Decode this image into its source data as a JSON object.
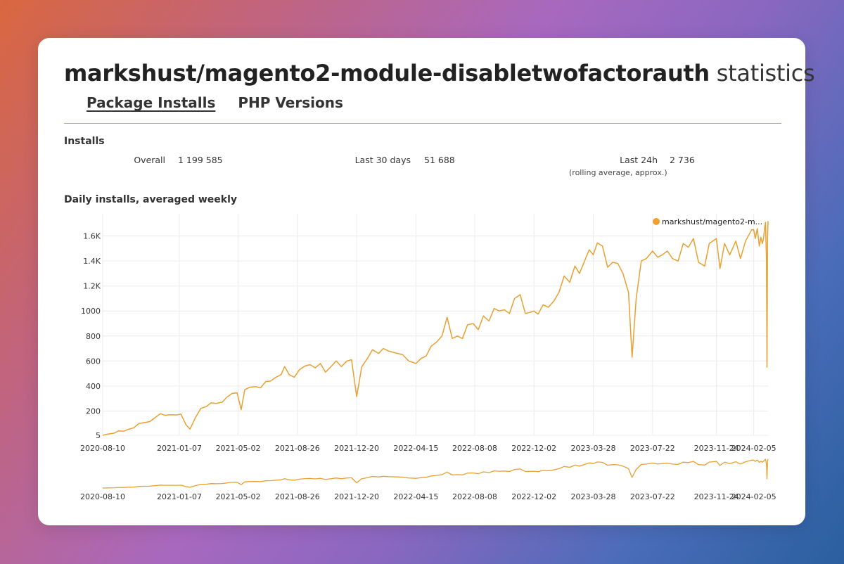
{
  "header": {
    "package_name": "markshust/magento2-module-disabletwofactorauth",
    "title_suffix": "statistics"
  },
  "tabs": [
    {
      "label": "Package Installs",
      "active": true
    },
    {
      "label": "PHP Versions",
      "active": false
    }
  ],
  "installs": {
    "section_label": "Installs",
    "overall_label": "Overall",
    "overall_value": "1 199 585",
    "last30_label": "Last 30 days",
    "last30_value": "51 688",
    "last24_label": "Last 24h",
    "last24_value": "2 736",
    "last24_note": "(rolling average, approx.)"
  },
  "chart_section_label": "Daily installs, averaged weekly",
  "colors": {
    "series": "#f0a030",
    "line": "#e8a030",
    "grid": "#ececec",
    "divider": "#e0a84a"
  },
  "chart_data": {
    "type": "line",
    "title": "",
    "xlabel": "",
    "ylabel": "",
    "legend": {
      "position": "top-right",
      "label": "markshust/magento2-m..."
    },
    "grid": true,
    "ylim": [
      5,
      1750
    ],
    "y_ticks": [
      5,
      200,
      400,
      600,
      800,
      1000,
      1200,
      1400,
      1600
    ],
    "y_tick_labels": [
      "5",
      "200",
      "400",
      "600",
      "800",
      "1000",
      "1.2K",
      "1.4K",
      "1.6K"
    ],
    "x_start": "2020-08-10",
    "x_end": "2024-03-04",
    "x_ticks": [
      "2020-08-10",
      "2021-01-07",
      "2021-05-02",
      "2021-08-26",
      "2021-12-20",
      "2022-04-15",
      "2022-08-08",
      "2022-12-02",
      "2023-03-28",
      "2023-07-22",
      "2023-11-24",
      "2024-02-05"
    ],
    "series": [
      {
        "name": "markshust/magento2-m...",
        "points": [
          [
            "2020-08-10",
            5
          ],
          [
            "2020-08-20",
            15
          ],
          [
            "2020-09-01",
            22
          ],
          [
            "2020-09-10",
            40
          ],
          [
            "2020-09-20",
            38
          ],
          [
            "2020-10-01",
            55
          ],
          [
            "2020-10-10",
            65
          ],
          [
            "2020-10-20",
            100
          ],
          [
            "2020-11-01",
            108
          ],
          [
            "2020-11-10",
            115
          ],
          [
            "2020-11-20",
            145
          ],
          [
            "2020-12-01",
            178
          ],
          [
            "2020-12-10",
            165
          ],
          [
            "2020-12-20",
            170
          ],
          [
            "2021-01-01",
            168
          ],
          [
            "2021-01-10",
            175
          ],
          [
            "2021-01-20",
            90
          ],
          [
            "2021-01-28",
            55
          ],
          [
            "2021-02-08",
            150
          ],
          [
            "2021-02-18",
            220
          ],
          [
            "2021-03-01",
            235
          ],
          [
            "2021-03-10",
            265
          ],
          [
            "2021-03-20",
            260
          ],
          [
            "2021-04-01",
            270
          ],
          [
            "2021-04-10",
            310
          ],
          [
            "2021-04-20",
            340
          ],
          [
            "2021-04-30",
            345
          ],
          [
            "2021-05-08",
            210
          ],
          [
            "2021-05-15",
            370
          ],
          [
            "2021-05-25",
            390
          ],
          [
            "2021-06-05",
            395
          ],
          [
            "2021-06-15",
            385
          ],
          [
            "2021-06-25",
            435
          ],
          [
            "2021-07-05",
            440
          ],
          [
            "2021-07-15",
            470
          ],
          [
            "2021-07-25",
            490
          ],
          [
            "2021-08-01",
            555
          ],
          [
            "2021-08-10",
            490
          ],
          [
            "2021-08-20",
            470
          ],
          [
            "2021-08-30",
            530
          ],
          [
            "2021-09-10",
            560
          ],
          [
            "2021-09-20",
            570
          ],
          [
            "2021-09-30",
            545
          ],
          [
            "2021-10-10",
            580
          ],
          [
            "2021-10-20",
            510
          ],
          [
            "2021-11-01",
            560
          ],
          [
            "2021-11-10",
            600
          ],
          [
            "2021-11-20",
            555
          ],
          [
            "2021-12-01",
            600
          ],
          [
            "2021-12-10",
            610
          ],
          [
            "2021-12-20",
            315
          ],
          [
            "2021-12-30",
            555
          ],
          [
            "2022-01-10",
            620
          ],
          [
            "2022-01-20",
            690
          ],
          [
            "2022-02-01",
            660
          ],
          [
            "2022-02-10",
            700
          ],
          [
            "2022-02-20",
            680
          ],
          [
            "2022-03-01",
            670
          ],
          [
            "2022-03-10",
            660
          ],
          [
            "2022-03-20",
            650
          ],
          [
            "2022-04-01",
            600
          ],
          [
            "2022-04-15",
            580
          ],
          [
            "2022-04-25",
            620
          ],
          [
            "2022-05-05",
            640
          ],
          [
            "2022-05-15",
            720
          ],
          [
            "2022-05-25",
            750
          ],
          [
            "2022-06-05",
            800
          ],
          [
            "2022-06-15",
            950
          ],
          [
            "2022-06-25",
            780
          ],
          [
            "2022-07-05",
            800
          ],
          [
            "2022-07-15",
            780
          ],
          [
            "2022-07-25",
            890
          ],
          [
            "2022-08-05",
            900
          ],
          [
            "2022-08-15",
            850
          ],
          [
            "2022-08-25",
            960
          ],
          [
            "2022-09-05",
            920
          ],
          [
            "2022-09-15",
            1020
          ],
          [
            "2022-09-25",
            1000
          ],
          [
            "2022-10-05",
            1010
          ],
          [
            "2022-10-15",
            980
          ],
          [
            "2022-10-25",
            1100
          ],
          [
            "2022-11-05",
            1130
          ],
          [
            "2022-11-15",
            980
          ],
          [
            "2022-11-25",
            990
          ],
          [
            "2022-12-02",
            1000
          ],
          [
            "2022-12-10",
            975
          ],
          [
            "2022-12-20",
            1050
          ],
          [
            "2022-12-30",
            1030
          ],
          [
            "2023-01-10",
            1080
          ],
          [
            "2023-01-20",
            1150
          ],
          [
            "2023-01-30",
            1280
          ],
          [
            "2023-02-10",
            1230
          ],
          [
            "2023-02-20",
            1360
          ],
          [
            "2023-03-01",
            1300
          ],
          [
            "2023-03-10",
            1390
          ],
          [
            "2023-03-20",
            1490
          ],
          [
            "2023-03-28",
            1450
          ],
          [
            "2023-04-05",
            1545
          ],
          [
            "2023-04-15",
            1520
          ],
          [
            "2023-04-25",
            1350
          ],
          [
            "2023-05-05",
            1390
          ],
          [
            "2023-05-15",
            1380
          ],
          [
            "2023-05-25",
            1300
          ],
          [
            "2023-06-05",
            1150
          ],
          [
            "2023-06-12",
            630
          ],
          [
            "2023-06-20",
            1100
          ],
          [
            "2023-06-30",
            1400
          ],
          [
            "2023-07-10",
            1420
          ],
          [
            "2023-07-22",
            1480
          ],
          [
            "2023-08-01",
            1430
          ],
          [
            "2023-08-10",
            1450
          ],
          [
            "2023-08-20",
            1480
          ],
          [
            "2023-08-30",
            1420
          ],
          [
            "2023-09-10",
            1400
          ],
          [
            "2023-09-20",
            1540
          ],
          [
            "2023-09-30",
            1510
          ],
          [
            "2023-10-10",
            1580
          ],
          [
            "2023-10-20",
            1390
          ],
          [
            "2023-11-01",
            1360
          ],
          [
            "2023-11-10",
            1540
          ],
          [
            "2023-11-24",
            1580
          ],
          [
            "2023-12-01",
            1340
          ],
          [
            "2023-12-10",
            1540
          ],
          [
            "2023-12-20",
            1450
          ],
          [
            "2024-01-01",
            1560
          ],
          [
            "2024-01-10",
            1420
          ],
          [
            "2024-01-20",
            1560
          ],
          [
            "2024-02-01",
            1650
          ],
          [
            "2024-02-05",
            1650
          ],
          [
            "2024-02-08",
            1580
          ],
          [
            "2024-02-12",
            1660
          ],
          [
            "2024-02-16",
            1520
          ],
          [
            "2024-02-19",
            1590
          ],
          [
            "2024-02-22",
            1540
          ],
          [
            "2024-02-24",
            1580
          ],
          [
            "2024-02-26",
            1650
          ],
          [
            "2024-02-27",
            1680
          ],
          [
            "2024-02-28",
            1710
          ],
          [
            "2024-02-29",
            1550
          ],
          [
            "2024-03-01",
            1420
          ],
          [
            "2024-03-02",
            550
          ],
          [
            "2024-03-03",
            1600
          ],
          [
            "2024-03-04",
            1720
          ]
        ]
      }
    ]
  }
}
